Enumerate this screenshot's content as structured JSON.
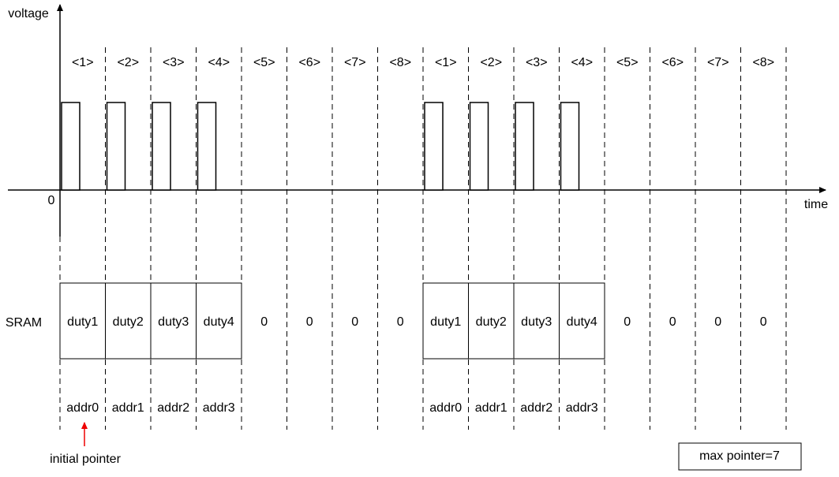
{
  "axes": {
    "y_label": "voltage",
    "x_label": "time",
    "origin": "0"
  },
  "sram_label": "SRAM",
  "frames": [
    {
      "slots": [
        "<1>",
        "<2>",
        "<3>",
        "<4>",
        "<5>",
        "<6>",
        "<7>",
        "<8>"
      ],
      "sram": [
        "duty1",
        "duty2",
        "duty3",
        "duty4",
        "0",
        "0",
        "0",
        "0"
      ],
      "addr": [
        "addr0",
        "addr1",
        "addr2",
        "addr3"
      ]
    },
    {
      "slots": [
        "<1>",
        "<2>",
        "<3>",
        "<4>",
        "<5>",
        "<6>",
        "<7>",
        "<8>"
      ],
      "sram": [
        "duty1",
        "duty2",
        "duty3",
        "duty4",
        "0",
        "0",
        "0",
        "0"
      ],
      "addr": [
        "addr0",
        "addr1",
        "addr2",
        "addr3"
      ]
    }
  ],
  "pointer_label": "initial pointer",
  "max_pointer": "max pointer=7"
}
